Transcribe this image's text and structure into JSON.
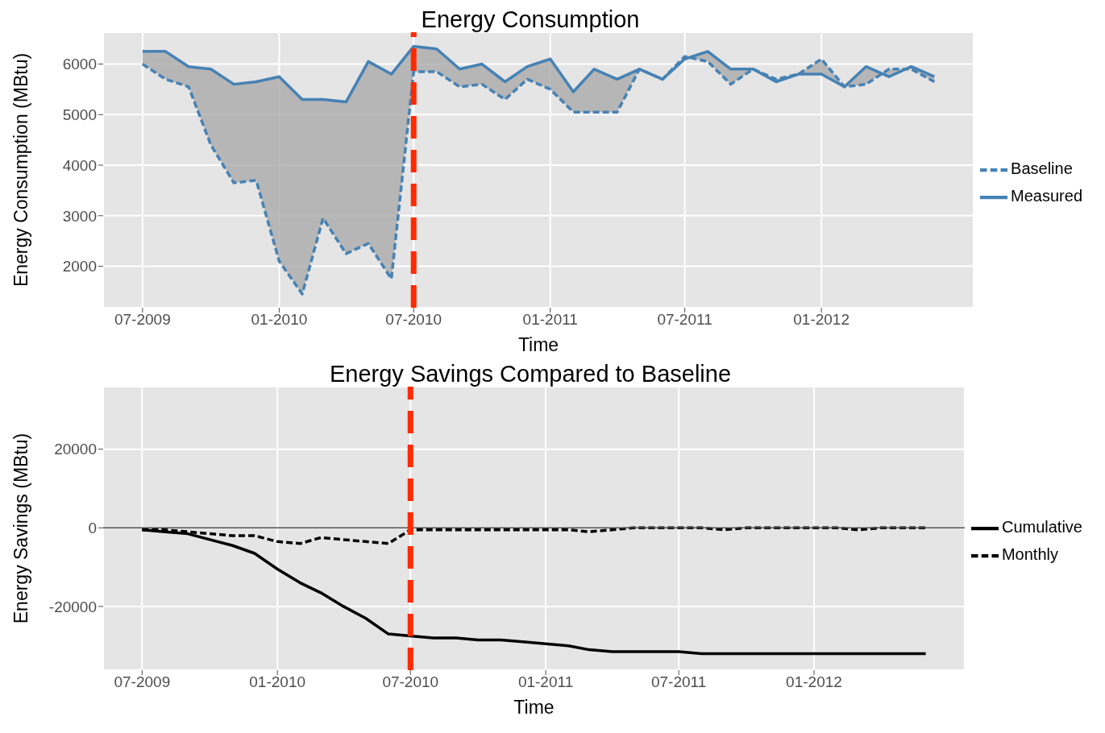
{
  "chart_data": [
    {
      "type": "line",
      "title": "Energy Consumption",
      "xlabel": "Time",
      "ylabel": "Energy Consumption (MBtu)",
      "legend": "right",
      "grid": true,
      "x": [
        "2009-07",
        "2009-08",
        "2009-09",
        "2009-10",
        "2009-11",
        "2009-12",
        "2010-01",
        "2010-02",
        "2010-03",
        "2010-04",
        "2010-05",
        "2010-06",
        "2010-07",
        "2010-08",
        "2010-09",
        "2010-10",
        "2010-11",
        "2010-12",
        "2011-01",
        "2011-02",
        "2011-03",
        "2011-04",
        "2011-05",
        "2011-06",
        "2011-07",
        "2011-08",
        "2011-09",
        "2011-10",
        "2011-11",
        "2011-12",
        "2012-01",
        "2012-02",
        "2012-03",
        "2012-04",
        "2012-05",
        "2012-06"
      ],
      "xlim": [
        "2009-05-09",
        "2012-07-24"
      ],
      "xticks": [
        {
          "value": "2009-07",
          "label": "07-2009"
        },
        {
          "value": "2010-01",
          "label": "01-2010"
        },
        {
          "value": "2010-07",
          "label": "07-2010"
        },
        {
          "value": "2011-01",
          "label": "01-2011"
        },
        {
          "value": "2011-07",
          "label": "07-2011"
        },
        {
          "value": "2012-01",
          "label": "01-2012"
        }
      ],
      "ylim": [
        1180,
        6630
      ],
      "yticks": [
        2000,
        3000,
        4000,
        5000,
        6000
      ],
      "series": [
        {
          "name": "Baseline",
          "color": "#4682b4",
          "line_style": "dashed",
          "values": [
            6000,
            5700,
            5550,
            4400,
            3650,
            3700,
            2100,
            1450,
            2950,
            2250,
            2450,
            1750,
            5850,
            5850,
            5550,
            5600,
            5300,
            5700,
            5500,
            5050,
            5050,
            5050,
            5900,
            5700,
            6150,
            6050,
            5600,
            5900,
            5700,
            5800,
            6100,
            5550,
            5600,
            5900,
            5900,
            5650
          ]
        },
        {
          "name": "Measured",
          "color": "#4682b4",
          "line_style": "solid",
          "values": [
            6250,
            6250,
            5950,
            5900,
            5600,
            5650,
            5750,
            5300,
            5300,
            5250,
            6050,
            5800,
            6350,
            6300,
            5900,
            6000,
            5650,
            5950,
            6100,
            5450,
            5900,
            5700,
            5900,
            5700,
            6100,
            6250,
            5900,
            5900,
            5650,
            5800,
            5800,
            5550,
            5950,
            5750,
            5950,
            5750
          ],
          "lower": [
            6000,
            5700,
            5550,
            4400,
            3650,
            3700,
            2100,
            1450,
            2950,
            2250,
            2450,
            1750,
            5850,
            5850,
            5550,
            5600,
            5300,
            5700,
            5500,
            5050,
            5050,
            5050,
            5900,
            5700,
            6150,
            6050,
            5600,
            5900,
            5700,
            5800,
            6100,
            5550,
            5600,
            5900,
            5900,
            5650
          ],
          "upper": [
            6250,
            6250,
            5950,
            5900,
            5600,
            5650,
            5750,
            5300,
            5300,
            5250,
            6050,
            5800,
            6350,
            6300,
            5900,
            6000,
            5650,
            5950,
            6100,
            5450,
            5900,
            5700,
            5900,
            5700,
            6100,
            6250,
            5900,
            5900,
            5650,
            5800,
            5800,
            5550,
            5950,
            5750,
            5950,
            5750
          ]
        }
      ],
      "ref_lines": [
        {
          "axis": "x",
          "value": "2010-07",
          "color": "#ff2a00",
          "line_style": "dashed"
        }
      ]
    },
    {
      "type": "line",
      "title": "Energy Savings Compared to Baseline",
      "xlabel": "Time",
      "ylabel": "Energy Savings (MBtu)",
      "legend": "right",
      "grid": true,
      "x": [
        "2009-07",
        "2009-08",
        "2009-09",
        "2009-10",
        "2009-11",
        "2009-12",
        "2010-01",
        "2010-02",
        "2010-03",
        "2010-04",
        "2010-05",
        "2010-06",
        "2010-07",
        "2010-08",
        "2010-09",
        "2010-10",
        "2010-11",
        "2010-12",
        "2011-01",
        "2011-02",
        "2011-03",
        "2011-04",
        "2011-05",
        "2011-06",
        "2011-07",
        "2011-08",
        "2011-09",
        "2011-10",
        "2011-11",
        "2011-12",
        "2012-01",
        "2012-02",
        "2012-03",
        "2012-04",
        "2012-05",
        "2012-06"
      ],
      "xlim": [
        "2009-05-09",
        "2012-07-24"
      ],
      "xticks": [
        {
          "value": "2009-07",
          "label": "07-2009"
        },
        {
          "value": "2010-01",
          "label": "01-2010"
        },
        {
          "value": "2010-07",
          "label": "07-2010"
        },
        {
          "value": "2011-01",
          "label": "01-2011"
        },
        {
          "value": "2011-07",
          "label": "07-2011"
        },
        {
          "value": "2012-01",
          "label": "01-2012"
        }
      ],
      "ylim": [
        -36200,
        35900
      ],
      "yticks": [
        -20000,
        0,
        20000
      ],
      "series": [
        {
          "name": "Cumulative",
          "color": "#000000",
          "line_style": "solid",
          "values": [
            -500,
            -1000,
            -1500,
            -3000,
            -4500,
            -6500,
            -10500,
            -14000,
            -16500,
            -20000,
            -23000,
            -27000,
            -27500,
            -28000,
            -28000,
            -28500,
            -28500,
            -29000,
            -29500,
            -30000,
            -31000,
            -31500,
            -31500,
            -31500,
            -31500,
            -32000,
            -32000,
            -32000,
            -32000,
            -32000,
            -32000,
            -32000,
            -32000,
            -32000,
            -32000,
            -32000
          ]
        },
        {
          "name": "Monthly",
          "color": "#000000",
          "line_style": "dashed",
          "values": [
            -500,
            -500,
            -1000,
            -1500,
            -2000,
            -2000,
            -3500,
            -4000,
            -2500,
            -3000,
            -3500,
            -4000,
            -500,
            -500,
            -500,
            -500,
            -500,
            -500,
            -500,
            -500,
            -1000,
            -500,
            0,
            0,
            0,
            0,
            -500,
            0,
            0,
            0,
            0,
            0,
            -500,
            0,
            0,
            0
          ]
        }
      ],
      "ref_lines": [
        {
          "axis": "y",
          "value": 0,
          "color": "#4d4d4d",
          "line_style": "solid"
        },
        {
          "axis": "x",
          "value": "2010-07",
          "color": "#ff2a00",
          "line_style": "dashed"
        }
      ]
    }
  ]
}
